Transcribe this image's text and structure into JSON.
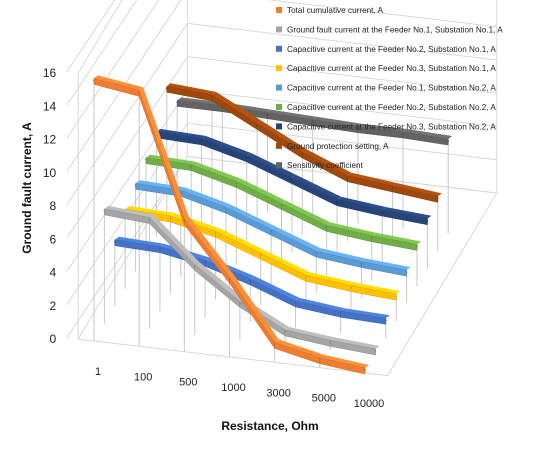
{
  "chart_data": {
    "type": "line",
    "subtype": "3d-line",
    "xlabel": "Resistance, Ohm",
    "ylabel": "Ground fault current, A",
    "categories": [
      "1",
      "100",
      "500",
      "1000",
      "3000",
      "5000",
      "10000"
    ],
    "yticks": [
      0,
      2,
      4,
      6,
      8,
      10,
      12,
      14,
      16
    ],
    "ylim": [
      0,
      16
    ],
    "grid": true,
    "legend_position": "right",
    "series": [
      {
        "name": "Total cumulative current, A",
        "color": "#ED7D31",
        "values": [
          15.8,
          15.4,
          8.0,
          4.8,
          1.2,
          0.6,
          0.3
        ]
      },
      {
        "name": "Ground fault current at the Feeder No.1, Substation No.1, A",
        "color": "#A5A5A5",
        "values": [
          6.9,
          6.7,
          4.2,
          2.3,
          0.9,
          0.6,
          0.4
        ]
      },
      {
        "name": "Capacitive current at the Feeder No.2, Substation No.1, A",
        "color": "#4472C4",
        "values": [
          4.0,
          3.9,
          3.4,
          2.6,
          1.6,
          1.3,
          1.2
        ]
      },
      {
        "name": "Capacitive current at the Feeder No.3, Substation No.1, A",
        "color": "#FFC000",
        "values": [
          4.8,
          4.7,
          4.1,
          3.1,
          2.1,
          1.8,
          1.6
        ]
      },
      {
        "name": "Capacitive current at the Feeder No.1, Substation No.2, A",
        "color": "#5B9BD5",
        "values": [
          5.3,
          5.2,
          4.5,
          3.5,
          2.5,
          2.2,
          2.0
        ]
      },
      {
        "name": "Capacitive current at the Feeder No.2, Substation No.2, A",
        "color": "#70AD47",
        "values": [
          5.8,
          5.7,
          5.0,
          4.0,
          3.0,
          2.7,
          2.5
        ]
      },
      {
        "name": "Capacitive current at the Feeder No.3, Substation No.2, A",
        "color": "#264478",
        "values": [
          6.3,
          6.2,
          5.5,
          4.5,
          3.5,
          3.2,
          3.0
        ]
      },
      {
        "name": "Ground protection setting, A",
        "color": "#9E480E",
        "values": [
          8.0,
          7.8,
          6.4,
          5.0,
          3.9,
          3.6,
          3.3
        ]
      },
      {
        "name": "Sensitivity coefficient",
        "color": "#636363",
        "values": [
          6.1,
          6.1,
          6.0,
          5.9,
          5.8,
          5.8,
          5.7
        ]
      }
    ]
  }
}
